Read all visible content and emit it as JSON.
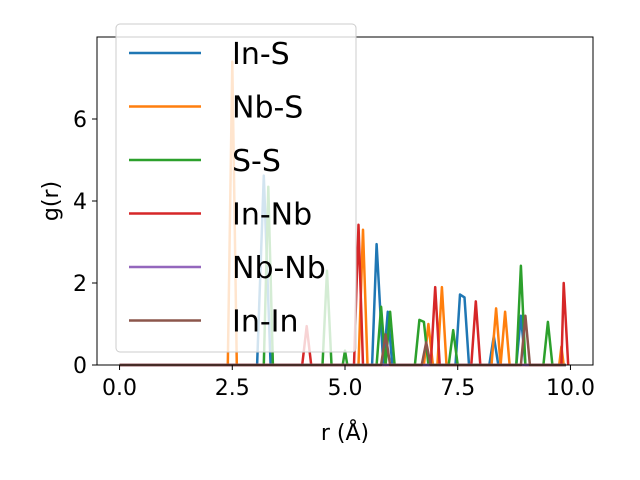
{
  "chart_data": {
    "type": "line",
    "xlabel": "r (Å)",
    "ylabel": "g(r)",
    "xlim": [
      -0.5,
      10.5
    ],
    "ylim": [
      0,
      8
    ],
    "xticks": [
      0.0,
      2.5,
      5.0,
      7.5,
      10.0
    ],
    "xtick_labels": [
      "0.0",
      "2.5",
      "5.0",
      "7.5",
      "10.0"
    ],
    "yticks": [
      0,
      2,
      4,
      6
    ],
    "ytick_labels": [
      "0",
      "2",
      "4",
      "6"
    ],
    "grid": false,
    "legend_position": "upper-left",
    "series": [
      {
        "name": "In-S",
        "color": "#1f77b4",
        "points": [
          [
            0,
            0
          ],
          [
            3.05,
            0
          ],
          [
            3.2,
            4.62
          ],
          [
            3.35,
            0
          ],
          [
            5.6,
            0
          ],
          [
            5.7,
            2.95
          ],
          [
            5.85,
            0
          ],
          [
            5.95,
            1.3
          ],
          [
            6.05,
            0
          ],
          [
            7.45,
            0
          ],
          [
            7.55,
            1.72
          ],
          [
            7.65,
            1.65
          ],
          [
            7.75,
            0
          ],
          [
            8.2,
            0
          ],
          [
            8.3,
            0.7
          ],
          [
            8.4,
            0
          ],
          [
            8.8,
            0
          ],
          [
            8.9,
            1.2
          ],
          [
            9.0,
            0
          ],
          [
            9.9,
            0
          ]
        ]
      },
      {
        "name": "Nb-S",
        "color": "#ff7f0e",
        "points": [
          [
            0,
            0
          ],
          [
            2.4,
            0
          ],
          [
            2.5,
            7.4
          ],
          [
            2.6,
            0
          ],
          [
            5.3,
            0
          ],
          [
            5.4,
            3.3
          ],
          [
            5.5,
            0
          ],
          [
            6.75,
            0
          ],
          [
            6.85,
            1.0
          ],
          [
            6.95,
            0
          ],
          [
            7.05,
            0
          ],
          [
            7.15,
            1.9
          ],
          [
            7.25,
            0
          ],
          [
            8.25,
            0
          ],
          [
            8.35,
            1.38
          ],
          [
            8.45,
            0
          ],
          [
            8.55,
            1.3
          ],
          [
            8.65,
            0
          ],
          [
            9.75,
            0
          ],
          [
            9.8,
            0.45
          ],
          [
            9.85,
            0
          ]
        ]
      },
      {
        "name": "S-S",
        "color": "#2ca02c",
        "points": [
          [
            0,
            0
          ],
          [
            3.2,
            0
          ],
          [
            3.3,
            4.35
          ],
          [
            3.4,
            0
          ],
          [
            4.5,
            0
          ],
          [
            4.6,
            2.3
          ],
          [
            4.7,
            0
          ],
          [
            4.95,
            0
          ],
          [
            5.0,
            0.35
          ],
          [
            5.05,
            0
          ],
          [
            5.7,
            0
          ],
          [
            5.8,
            1.42
          ],
          [
            5.9,
            0
          ],
          [
            6.0,
            1.3
          ],
          [
            6.1,
            0
          ],
          [
            6.55,
            0
          ],
          [
            6.65,
            1.1
          ],
          [
            6.75,
            1.05
          ],
          [
            6.85,
            0
          ],
          [
            7.3,
            0
          ],
          [
            7.4,
            0.85
          ],
          [
            7.5,
            0
          ],
          [
            8.8,
            0
          ],
          [
            8.9,
            2.42
          ],
          [
            9.0,
            0
          ],
          [
            9.4,
            0
          ],
          [
            9.5,
            1.05
          ],
          [
            9.6,
            0
          ],
          [
            9.9,
            0
          ]
        ]
      },
      {
        "name": "In-Nb",
        "color": "#d62728",
        "points": [
          [
            0,
            0
          ],
          [
            4.05,
            0
          ],
          [
            4.15,
            0.95
          ],
          [
            4.25,
            0
          ],
          [
            5.2,
            0
          ],
          [
            5.3,
            3.42
          ],
          [
            5.4,
            0
          ],
          [
            6.9,
            0
          ],
          [
            7.0,
            1.9
          ],
          [
            7.1,
            0
          ],
          [
            7.8,
            0
          ],
          [
            7.9,
            1.55
          ],
          [
            8.0,
            0
          ],
          [
            9.8,
            0
          ],
          [
            9.85,
            2.0
          ],
          [
            9.95,
            0
          ]
        ]
      },
      {
        "name": "Nb-Nb",
        "color": "#9467bd",
        "points": [
          [
            0,
            0
          ],
          [
            9.9,
            0
          ]
        ]
      },
      {
        "name": "In-In",
        "color": "#8c564b",
        "points": [
          [
            0,
            0
          ],
          [
            5.8,
            0
          ],
          [
            5.9,
            0.75
          ],
          [
            6.0,
            0
          ],
          [
            6.7,
            0
          ],
          [
            6.8,
            0.55
          ],
          [
            6.9,
            0
          ],
          [
            8.9,
            0
          ],
          [
            9.0,
            1.2
          ],
          [
            9.1,
            0
          ],
          [
            9.9,
            0
          ]
        ]
      }
    ]
  }
}
